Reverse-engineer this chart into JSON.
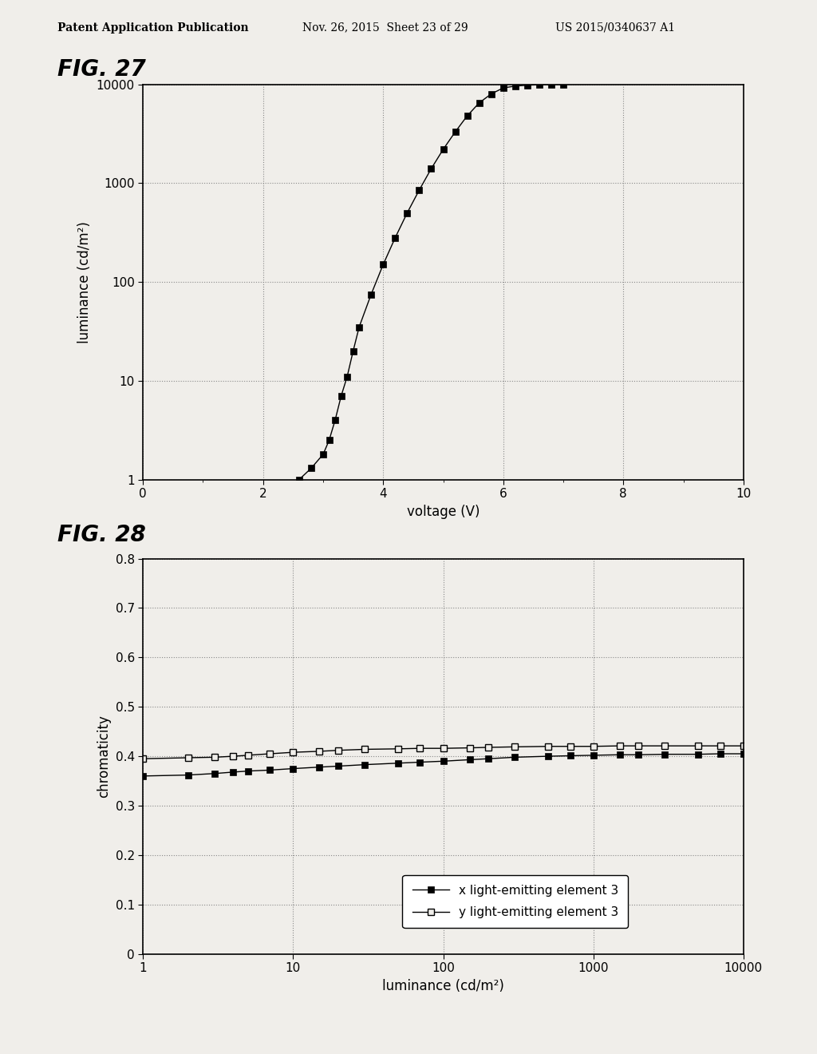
{
  "header_left": "Patent Application Publication",
  "header_middle": "Nov. 26, 2015  Sheet 23 of 29",
  "header_right": "US 2015/0340637 A1",
  "fig27_label": "FIG. 27",
  "fig28_label": "FIG. 28",
  "fig27": {
    "voltage": [
      2.6,
      2.8,
      3.0,
      3.1,
      3.2,
      3.3,
      3.4,
      3.5,
      3.6,
      3.8,
      4.0,
      4.2,
      4.4,
      4.6,
      4.8,
      5.0,
      5.2,
      5.4,
      5.6,
      5.8,
      6.0,
      6.2,
      6.4,
      6.6,
      6.8,
      7.0
    ],
    "luminance": [
      1.0,
      1.3,
      1.8,
      2.5,
      4.0,
      7.0,
      11.0,
      20.0,
      35.0,
      75.0,
      150.0,
      280.0,
      500.0,
      850.0,
      1400.0,
      2200.0,
      3300.0,
      4800.0,
      6500.0,
      8000.0,
      9200.0,
      9600.0,
      9800.0,
      9900.0,
      9950.0,
      10000.0
    ],
    "xlabel": "voltage (V)",
    "ylabel": "luminance (cd/m²)",
    "xlim": [
      0,
      10
    ],
    "ylim_log": [
      1,
      10000
    ],
    "xticks": [
      0,
      2,
      4,
      6,
      8,
      10
    ],
    "yticks_log": [
      1,
      10,
      100,
      1000,
      10000
    ]
  },
  "fig28": {
    "luminance_x": [
      1.0,
      2.0,
      3.0,
      4.0,
      5.0,
      7.0,
      10.0,
      15.0,
      20.0,
      30.0,
      50.0,
      70.0,
      100.0,
      150.0,
      200.0,
      300.0,
      500.0,
      700.0,
      1000.0,
      1500.0,
      2000.0,
      3000.0,
      5000.0,
      7000.0,
      10000.0
    ],
    "chroma_x": [
      0.36,
      0.362,
      0.365,
      0.368,
      0.37,
      0.372,
      0.375,
      0.378,
      0.38,
      0.383,
      0.386,
      0.388,
      0.39,
      0.393,
      0.395,
      0.398,
      0.4,
      0.401,
      0.402,
      0.403,
      0.403,
      0.404,
      0.404,
      0.405,
      0.405
    ],
    "luminance_y": [
      1.0,
      2.0,
      3.0,
      4.0,
      5.0,
      7.0,
      10.0,
      15.0,
      20.0,
      30.0,
      50.0,
      70.0,
      100.0,
      150.0,
      200.0,
      300.0,
      500.0,
      700.0,
      1000.0,
      1500.0,
      2000.0,
      3000.0,
      5000.0,
      7000.0,
      10000.0
    ],
    "chroma_y": [
      0.395,
      0.397,
      0.398,
      0.4,
      0.402,
      0.405,
      0.408,
      0.41,
      0.412,
      0.414,
      0.415,
      0.416,
      0.416,
      0.417,
      0.418,
      0.419,
      0.42,
      0.42,
      0.42,
      0.421,
      0.421,
      0.421,
      0.421,
      0.421,
      0.421
    ],
    "xlabel": "luminance (cd/m²)",
    "ylabel": "chromaticity",
    "xlim_log": [
      1,
      10000
    ],
    "ylim": [
      0,
      0.8
    ],
    "yticks": [
      0,
      0.1,
      0.2,
      0.3,
      0.4,
      0.5,
      0.6,
      0.7,
      0.8
    ],
    "legend_x": "x light-emitting element 3",
    "legend_y": "y light-emitting element 3"
  },
  "bg_color": "#f0eeea",
  "plot_bg": "#f0eeea",
  "line_color": "#000000",
  "grid_color": "#888888",
  "marker_size": 6
}
